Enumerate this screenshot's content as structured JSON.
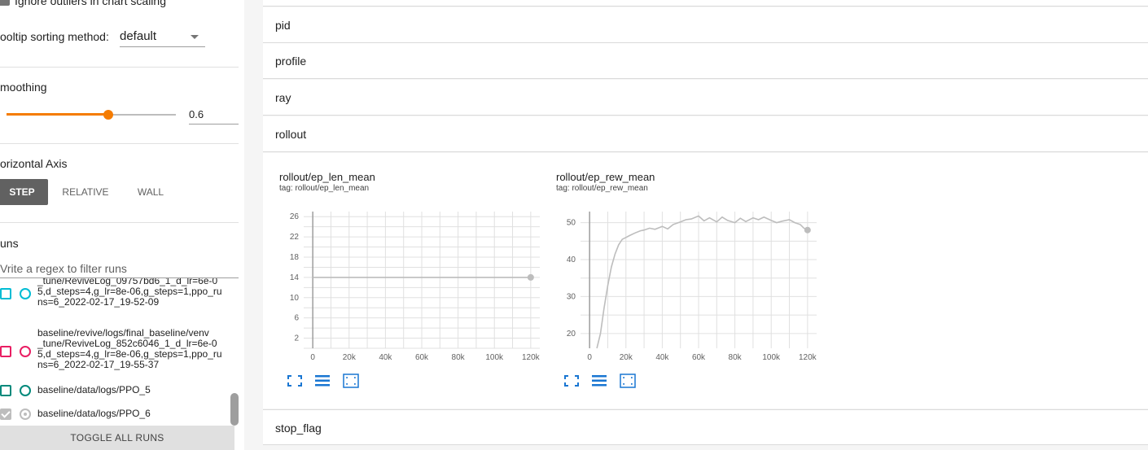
{
  "sidebar": {
    "ignore_outliers_label": "Ignore outliers in chart scaling",
    "tooltip_sort_label": "ooltip sorting method:",
    "tooltip_sort_value": "default",
    "smoothing_label": "moothing",
    "smoothing_value": "0.6",
    "smoothing_fraction": 0.6,
    "horizontal_axis_label": "orizontal Axis",
    "axis_buttons": [
      "STEP",
      "RELATIVE",
      "WALL"
    ],
    "axis_selected": "STEP",
    "runs_label": "uns",
    "runs_filter_placeholder": "Vrite a regex to filter runs",
    "runs": [
      {
        "label": "_tune/ReviveLog_09757bd6_1_d_lr=6e-0\n5,d_steps=4,g_lr=8e-06,g_steps=1,ppo_ru\nns=6_2022-02-17_19-52-09",
        "color": "#00bcd4",
        "checked": false
      },
      {
        "label": "baseline/revive/logs/final_baseline/venv\n_tune/ReviveLog_852c6046_1_d_lr=6e-0\n5,d_steps=4,g_lr=8e-06,g_steps=1,ppo_ru\nns=6_2022-02-17_19-55-37",
        "color": "#e91e63",
        "checked": false
      },
      {
        "label": "baseline/data/logs/PPO_5",
        "color": "#00897b",
        "checked": false
      },
      {
        "label": "baseline/data/logs/PPO_6",
        "color": "#9e9e9e",
        "checked": true
      }
    ],
    "toggle_all_label": "TOGGLE ALL RUNS"
  },
  "groups": {
    "pid": "pid",
    "profile": "profile",
    "ray": "ray",
    "rollout": "rollout",
    "stop_flag": "stop_flag"
  },
  "charts": {
    "len": {
      "title": "rollout/ep_len_mean",
      "tag": "tag: rollout/ep_len_mean"
    },
    "rew": {
      "title": "rollout/ep_rew_mean",
      "tag": "tag: rollout/ep_rew_mean"
    }
  },
  "chart_data": [
    {
      "type": "line",
      "title": "rollout/ep_len_mean",
      "subtitle": "tag: rollout/ep_len_mean",
      "xlim": [
        -5000,
        125000
      ],
      "ylim": [
        0,
        27
      ],
      "x_ticks": [
        0,
        20000,
        40000,
        60000,
        80000,
        100000,
        120000
      ],
      "x_tick_labels": [
        "0",
        "20k",
        "40k",
        "60k",
        "80k",
        "100k",
        "120k"
      ],
      "y_ticks": [
        2,
        6,
        10,
        14,
        18,
        22,
        26
      ],
      "grid": true,
      "series": [
        {
          "color": "#bdbdbd",
          "x": [
            0,
            120000
          ],
          "y": [
            14,
            14
          ]
        }
      ]
    },
    {
      "type": "line",
      "title": "rollout/ep_rew_mean",
      "subtitle": "tag: rollout/ep_rew_mean",
      "xlim": [
        -5000,
        125000
      ],
      "ylim": [
        16,
        53
      ],
      "x_ticks": [
        0,
        20000,
        40000,
        60000,
        80000,
        100000,
        120000
      ],
      "x_tick_labels": [
        "0",
        "20k",
        "40k",
        "60k",
        "80k",
        "100k",
        "120k"
      ],
      "y_ticks": [
        20,
        30,
        40,
        50
      ],
      "grid": true,
      "series": [
        {
          "color": "#bdbdbd",
          "x": [
            4000,
            6000,
            8000,
            10000,
            12000,
            14000,
            16000,
            18000,
            20000,
            22000,
            25000,
            28000,
            30000,
            33000,
            36000,
            40000,
            43000,
            46000,
            50000,
            53000,
            56000,
            60000,
            63000,
            66000,
            70000,
            73000,
            76000,
            80000,
            83000,
            86000,
            90000,
            93000,
            96000,
            100000,
            103000,
            106000,
            110000,
            113000,
            116000,
            118000,
            120000
          ],
          "y": [
            16,
            20,
            27,
            33,
            38,
            41.5,
            44,
            45.5,
            46,
            46.5,
            47.2,
            47.8,
            48,
            48.5,
            48.2,
            49,
            48.3,
            49.5,
            50.2,
            50.8,
            51,
            51.8,
            50.5,
            51.3,
            50.2,
            51.5,
            50.6,
            50,
            51.2,
            50.3,
            51.3,
            50.8,
            51.5,
            50.6,
            50,
            50.4,
            50.8,
            50,
            49.5,
            48.5,
            48
          ]
        }
      ]
    }
  ]
}
